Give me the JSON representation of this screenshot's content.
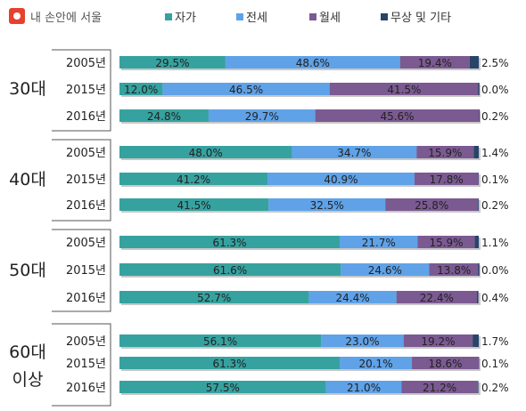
{
  "brand": {
    "name": "내 손안에 서울"
  },
  "colors": {
    "series": [
      "#36a2a0",
      "#5fa2e8",
      "#7b5a92",
      "#274569"
    ],
    "text": "#222222"
  },
  "chart_data": {
    "type": "bar",
    "orientation": "horizontal",
    "stacked": true,
    "normalized": true,
    "legend": {
      "position": "top"
    },
    "grid": false,
    "xlim": [
      0,
      100
    ],
    "groups": [
      {
        "label": "30대",
        "years": [
          "2005년",
          "2015년",
          "2016년"
        ]
      },
      {
        "label": "40대",
        "years": [
          "2005년",
          "2015년",
          "2016년"
        ]
      },
      {
        "label": "50대",
        "years": [
          "2005년",
          "2015년",
          "2016년"
        ]
      },
      {
        "label": "60대\n이상",
        "years": [
          "2005년",
          "2015년",
          "2016년"
        ]
      }
    ],
    "series": [
      {
        "name": "자가",
        "values": [
          29.5,
          12.0,
          24.8,
          48.0,
          41.2,
          41.5,
          61.3,
          61.6,
          52.7,
          56.1,
          61.3,
          57.5
        ]
      },
      {
        "name": "전세",
        "values": [
          48.6,
          46.5,
          29.7,
          34.7,
          40.9,
          32.5,
          21.7,
          24.6,
          24.4,
          23.0,
          20.1,
          21.0
        ]
      },
      {
        "name": "월세",
        "values": [
          19.4,
          41.5,
          45.6,
          15.9,
          17.8,
          25.8,
          15.9,
          13.8,
          22.4,
          19.2,
          18.6,
          21.2
        ]
      },
      {
        "name": "무상 및 기타",
        "values": [
          2.5,
          0.0,
          0.2,
          1.4,
          0.1,
          0.2,
          1.1,
          0.0,
          0.4,
          1.7,
          0.1,
          0.2
        ]
      }
    ]
  }
}
